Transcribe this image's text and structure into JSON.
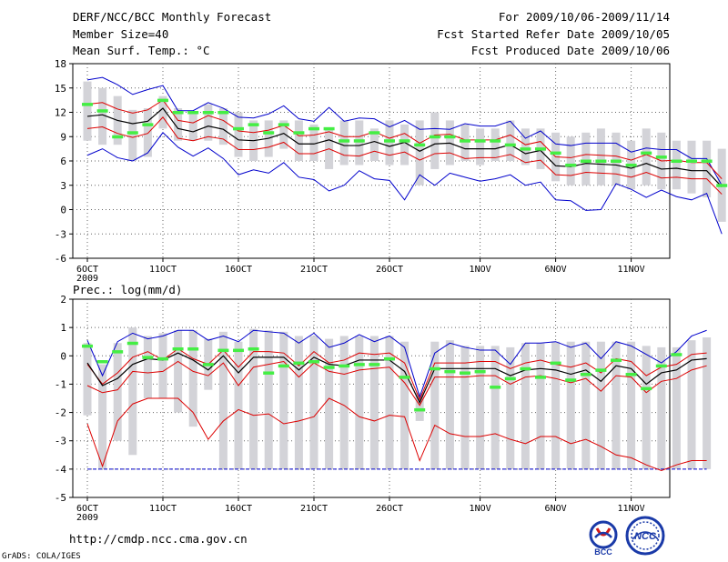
{
  "header": {
    "title": "DERF/NCC/BCC Monthly Forecast",
    "member_size": "Member Size=40",
    "variable": "Mean Surf. Temp.: °C",
    "period": "For 2009/10/06-2009/11/14",
    "started": "Fcst Started Refer Date 2009/10/05",
    "produced": "Fcst Produced Date 2009/10/06"
  },
  "footer": {
    "url": "http://cmdp.ncc.cma.gov.cn",
    "grads": "GrADS: COLA/IGES",
    "logo1_text": "BCC",
    "logo2_text": "NCC"
  },
  "colors": {
    "max": "#0000cc",
    "min": "#0000cc",
    "spread": "#dd0000",
    "mean": "#000000",
    "box": "#d3d3d8",
    "obs": "#44ee44",
    "grid": "#666666"
  },
  "chart_data": [
    {
      "type": "line",
      "title": "Mean Surf. Temp.: °C",
      "xlabel": "",
      "ylabel": "",
      "ylim": [
        -6,
        18
      ],
      "yticks": [
        -6,
        -3,
        0,
        3,
        6,
        9,
        12,
        15,
        18
      ],
      "xticks": [
        {
          "label": "6OCT",
          "day": 0
        },
        {
          "label": "11OCT",
          "day": 5
        },
        {
          "label": "16OCT",
          "day": 10
        },
        {
          "label": "21OCT",
          "day": 15
        },
        {
          "label": "26OCT",
          "day": 20
        },
        {
          "label": "1NOV",
          "day": 26
        },
        {
          "label": "6NOV",
          "day": 31
        },
        {
          "label": "11NOV",
          "day": 36
        }
      ],
      "year_label": "2009",
      "grid": true,
      "series": [
        {
          "name": "max",
          "values": [
            16,
            16.3,
            15.4,
            14.2,
            14.8,
            15.3,
            12.2,
            12.2,
            13.2,
            12.5,
            11.4,
            11.3,
            11.8,
            12.8,
            11.2,
            10.9,
            12.6,
            10.9,
            11.3,
            11.2,
            10.2,
            11,
            9.9,
            10,
            9.9,
            10.6,
            10.3,
            10.3,
            10.9,
            8.8,
            9.7,
            8.1,
            7.9,
            8.2,
            8.2,
            8.2,
            7.1,
            7.6,
            7.4,
            7.4,
            6.3,
            6.3,
            3
          ]
        },
        {
          "name": "spread_upper",
          "values": [
            13,
            13.2,
            12.4,
            11.9,
            12.3,
            13.5,
            11,
            10.7,
            11.6,
            11,
            9.7,
            9.5,
            9.8,
            10.4,
            9.1,
            9.2,
            9.6,
            9,
            9,
            9.6,
            8.8,
            9.4,
            8.2,
            9.2,
            9.3,
            8.6,
            8.6,
            8.6,
            9.2,
            8,
            8.4,
            6.5,
            6.4,
            6.8,
            6.7,
            6.6,
            6.1,
            6.8,
            6,
            6.1,
            5.8,
            5.8,
            3.8
          ]
        },
        {
          "name": "mean",
          "values": [
            11.5,
            11.7,
            11,
            10.6,
            10.9,
            12.5,
            10,
            9.6,
            10.3,
            9.9,
            8.6,
            8.5,
            8.8,
            9.4,
            8.1,
            8.1,
            8.6,
            7.9,
            7.9,
            8.4,
            7.8,
            8.3,
            7.2,
            8.1,
            8.2,
            7.5,
            7.5,
            7.5,
            8,
            6.9,
            7.3,
            5.4,
            5.3,
            5.7,
            5.6,
            5.5,
            5.1,
            5.7,
            5,
            5.1,
            4.8,
            4.8,
            2.8
          ]
        },
        {
          "name": "spread_lower",
          "values": [
            10,
            10.2,
            9.4,
            8.9,
            9.4,
            11.4,
            8.8,
            8.5,
            9,
            8.7,
            7.4,
            7.4,
            7.7,
            8.3,
            6.9,
            6.9,
            7.5,
            6.7,
            6.6,
            7.2,
            6.7,
            7.1,
            6.1,
            6.9,
            7,
            6.3,
            6.4,
            6.4,
            6.8,
            5.8,
            6.1,
            4.3,
            4.2,
            4.6,
            4.5,
            4.4,
            4,
            4.6,
            3.9,
            4,
            3.8,
            3.8,
            1.9
          ]
        },
        {
          "name": "min",
          "values": [
            6.7,
            7.5,
            6.4,
            6,
            7,
            9.5,
            7.7,
            6.6,
            7.6,
            6.3,
            4.3,
            4.9,
            4.5,
            5.8,
            4,
            3.7,
            2.3,
            3,
            4.8,
            3.8,
            3.6,
            1.2,
            4.3,
            3,
            4.5,
            4,
            3.5,
            3.8,
            4.3,
            3,
            3.4,
            1.2,
            1.1,
            -0.1,
            0,
            3.2,
            2.5,
            1.5,
            2.4,
            1.6,
            1.2,
            2,
            -3
          ]
        },
        {
          "name": "box_top",
          "values": [
            15.8,
            15,
            14,
            12.3,
            12.5,
            14,
            12.5,
            12,
            13,
            12.5,
            12,
            11,
            11,
            11,
            11,
            10.5,
            10,
            11,
            11,
            10,
            11,
            10.5,
            11,
            12,
            11,
            10.5,
            10,
            10,
            11,
            10,
            10,
            9.5,
            9,
            9.5,
            10,
            9.5,
            8.5,
            10,
            9.5,
            8.5,
            8.5,
            8.5,
            7.5
          ]
        },
        {
          "name": "box_bottom",
          "values": [
            8.5,
            8,
            8,
            6,
            6.5,
            10,
            8.5,
            8.5,
            8.5,
            8,
            6.5,
            6,
            6.5,
            7.5,
            6,
            6,
            5,
            5.5,
            5.5,
            6,
            5.5,
            5.5,
            3,
            5,
            5.5,
            6,
            5.5,
            6,
            6,
            5.5,
            5,
            3.5,
            3,
            3,
            3,
            3,
            2.5,
            3,
            2.5,
            2.5,
            2,
            1.5,
            -1.5
          ]
        },
        {
          "name": "obs",
          "values": [
            13,
            12.2,
            9,
            9.5,
            10.5,
            13.5,
            12,
            12,
            12,
            12,
            10,
            10.5,
            9.5,
            10.5,
            9.5,
            10,
            10,
            8.5,
            8.5,
            9.5,
            8.5,
            8.5,
            8,
            9,
            9,
            8.5,
            8.5,
            8.5,
            8,
            7.5,
            7.5,
            7,
            5.5,
            6,
            6,
            6,
            5.5,
            7,
            6.5,
            6,
            6,
            6,
            3
          ]
        }
      ]
    },
    {
      "type": "line",
      "title": "Prec.: log(mm/d)",
      "xlabel": "",
      "ylabel": "",
      "ylim": [
        -5,
        2
      ],
      "yticks": [
        -5,
        -4,
        -3,
        -2,
        -1,
        0,
        1,
        2
      ],
      "xticks": [
        {
          "label": "6OCT",
          "day": 0
        },
        {
          "label": "11OCT",
          "day": 5
        },
        {
          "label": "16OCT",
          "day": 10
        },
        {
          "label": "21OCT",
          "day": 15
        },
        {
          "label": "26OCT",
          "day": 20
        },
        {
          "label": "1NOV",
          "day": 26
        },
        {
          "label": "6NOV",
          "day": 31
        },
        {
          "label": "11NOV",
          "day": 36
        }
      ],
      "year_label": "2009",
      "grid": true,
      "series": [
        {
          "name": "max",
          "values": [
            0.55,
            -0.7,
            0.5,
            0.8,
            0.6,
            0.7,
            0.9,
            0.9,
            0.55,
            0.7,
            0.5,
            0.9,
            0.85,
            0.8,
            0.45,
            0.8,
            0.3,
            0.45,
            0.75,
            0.5,
            0.7,
            0.3,
            -1.45,
            0.1,
            0.45,
            0.3,
            0.2,
            0.2,
            -0.3,
            0.45,
            0.45,
            0.5,
            0.3,
            0.45,
            -0.1,
            0.5,
            0.35,
            0.05,
            -0.25,
            0.15,
            0.7,
            0.9
          ]
        },
        {
          "name": "spread_upper",
          "values": [
            -0.3,
            -1,
            -0.6,
            -0.05,
            0.15,
            -0.15,
            0.25,
            -0.1,
            -0.3,
            0.2,
            -0.4,
            0.15,
            0.15,
            0.1,
            -0.35,
            0.15,
            -0.25,
            -0.15,
            0.1,
            0.05,
            0.1,
            -0.25,
            -1.55,
            -0.25,
            -0.25,
            -0.25,
            -0.2,
            -0.2,
            -0.45,
            -0.25,
            -0.15,
            -0.3,
            -0.4,
            -0.25,
            -0.6,
            -0.1,
            -0.2,
            -0.7,
            -0.4,
            -0.3,
            0.05,
            0.1
          ]
        },
        {
          "name": "spread_lower",
          "values": [
            -1.05,
            -1.3,
            -1.2,
            -0.55,
            -0.6,
            -0.55,
            -0.2,
            -0.55,
            -0.7,
            -0.25,
            -1.05,
            -0.4,
            -0.3,
            -0.2,
            -0.75,
            -0.25,
            -0.55,
            -0.65,
            -0.5,
            -0.45,
            -0.4,
            -0.95,
            -1.75,
            -0.75,
            -0.75,
            -0.75,
            -0.7,
            -0.7,
            -1,
            -0.75,
            -0.7,
            -0.8,
            -0.95,
            -0.8,
            -1.25,
            -0.7,
            -0.75,
            -1.3,
            -0.9,
            -0.8,
            -0.5,
            -0.35
          ]
        },
        {
          "name": "min",
          "values": [
            -2.4,
            -3.9,
            -2.3,
            -1.7,
            -1.5,
            -1.5,
            -1.5,
            -2,
            -2.95,
            -2.3,
            -1.9,
            -2.1,
            -2.05,
            -2.4,
            -2.3,
            -2.15,
            -1.5,
            -1.75,
            -2.15,
            -2.3,
            -2.1,
            -2.15,
            -3.7,
            -2.45,
            -2.75,
            -2.85,
            -2.85,
            -2.75,
            -2.95,
            -3.1,
            -2.85,
            -2.85,
            -3.1,
            -2.95,
            -3.2,
            -3.5,
            -3.6,
            -3.85,
            -4.05,
            -3.85,
            -3.7,
            -3.7
          ]
        },
        {
          "name": "box_top",
          "values": [
            0.45,
            -0.3,
            0.45,
            1,
            0.7,
            0.8,
            0.9,
            0.9,
            0.6,
            0.85,
            0.5,
            0.95,
            0.9,
            0.85,
            0.7,
            0.7,
            0.6,
            0.7,
            0.7,
            0.7,
            0.7,
            0.5,
            -1.3,
            0.5,
            0.55,
            0.35,
            0.35,
            0.35,
            0.3,
            0.45,
            0.45,
            0.5,
            0.5,
            0.5,
            0.5,
            0.5,
            0.5,
            0.35,
            0.3,
            0.3,
            0.55,
            0.65
          ]
        },
        {
          "name": "box_bottom",
          "values": [
            -2.1,
            -4,
            -3,
            -3.5,
            -1.5,
            -1.5,
            -2,
            -2.5,
            -1.2,
            -4,
            -4,
            -4,
            -4,
            -4,
            -4,
            -4,
            -4,
            -4,
            -4,
            -4,
            -4,
            -4,
            -2.3,
            -4,
            -4,
            -4,
            -4,
            -4,
            -4,
            -4,
            -4,
            -4,
            -4,
            -4,
            -4,
            -4,
            -4,
            -4,
            -4,
            -4,
            -4,
            -4
          ]
        },
        {
          "name": "mean",
          "values": [
            -0.25,
            -1.05,
            -0.8,
            -0.3,
            -0.1,
            -0.15,
            0.1,
            -0.15,
            -0.5,
            0,
            -0.6,
            -0.05,
            -0.05,
            -0.05,
            -0.5,
            -0.05,
            -0.3,
            -0.35,
            -0.15,
            -0.15,
            -0.15,
            -0.55,
            -1.65,
            -0.45,
            -0.45,
            -0.45,
            -0.45,
            -0.45,
            -0.7,
            -0.5,
            -0.45,
            -0.5,
            -0.65,
            -0.5,
            -0.9,
            -0.35,
            -0.45,
            -1,
            -0.6,
            -0.5,
            -0.15,
            -0.1
          ]
        },
        {
          "name": "obs",
          "values": [
            0.35,
            -0.2,
            0.15,
            0.45,
            -0.05,
            -0.1,
            0.25,
            0.25,
            -0.3,
            0.2,
            0.2,
            0.25,
            -0.6,
            -0.35,
            -0.25,
            -0.2,
            -0.4,
            -0.35,
            -0.3,
            -0.3,
            -0.1,
            -0.75,
            -1.9,
            -0.45,
            -0.55,
            -0.6,
            -0.55,
            -1.1,
            -0.8,
            -0.45,
            -0.75,
            -0.25,
            -0.85,
            -0.65,
            -0.5,
            -0.15,
            -0.65,
            -1.15,
            -0.35,
            0.05,
            null,
            null
          ]
        }
      ]
    }
  ]
}
